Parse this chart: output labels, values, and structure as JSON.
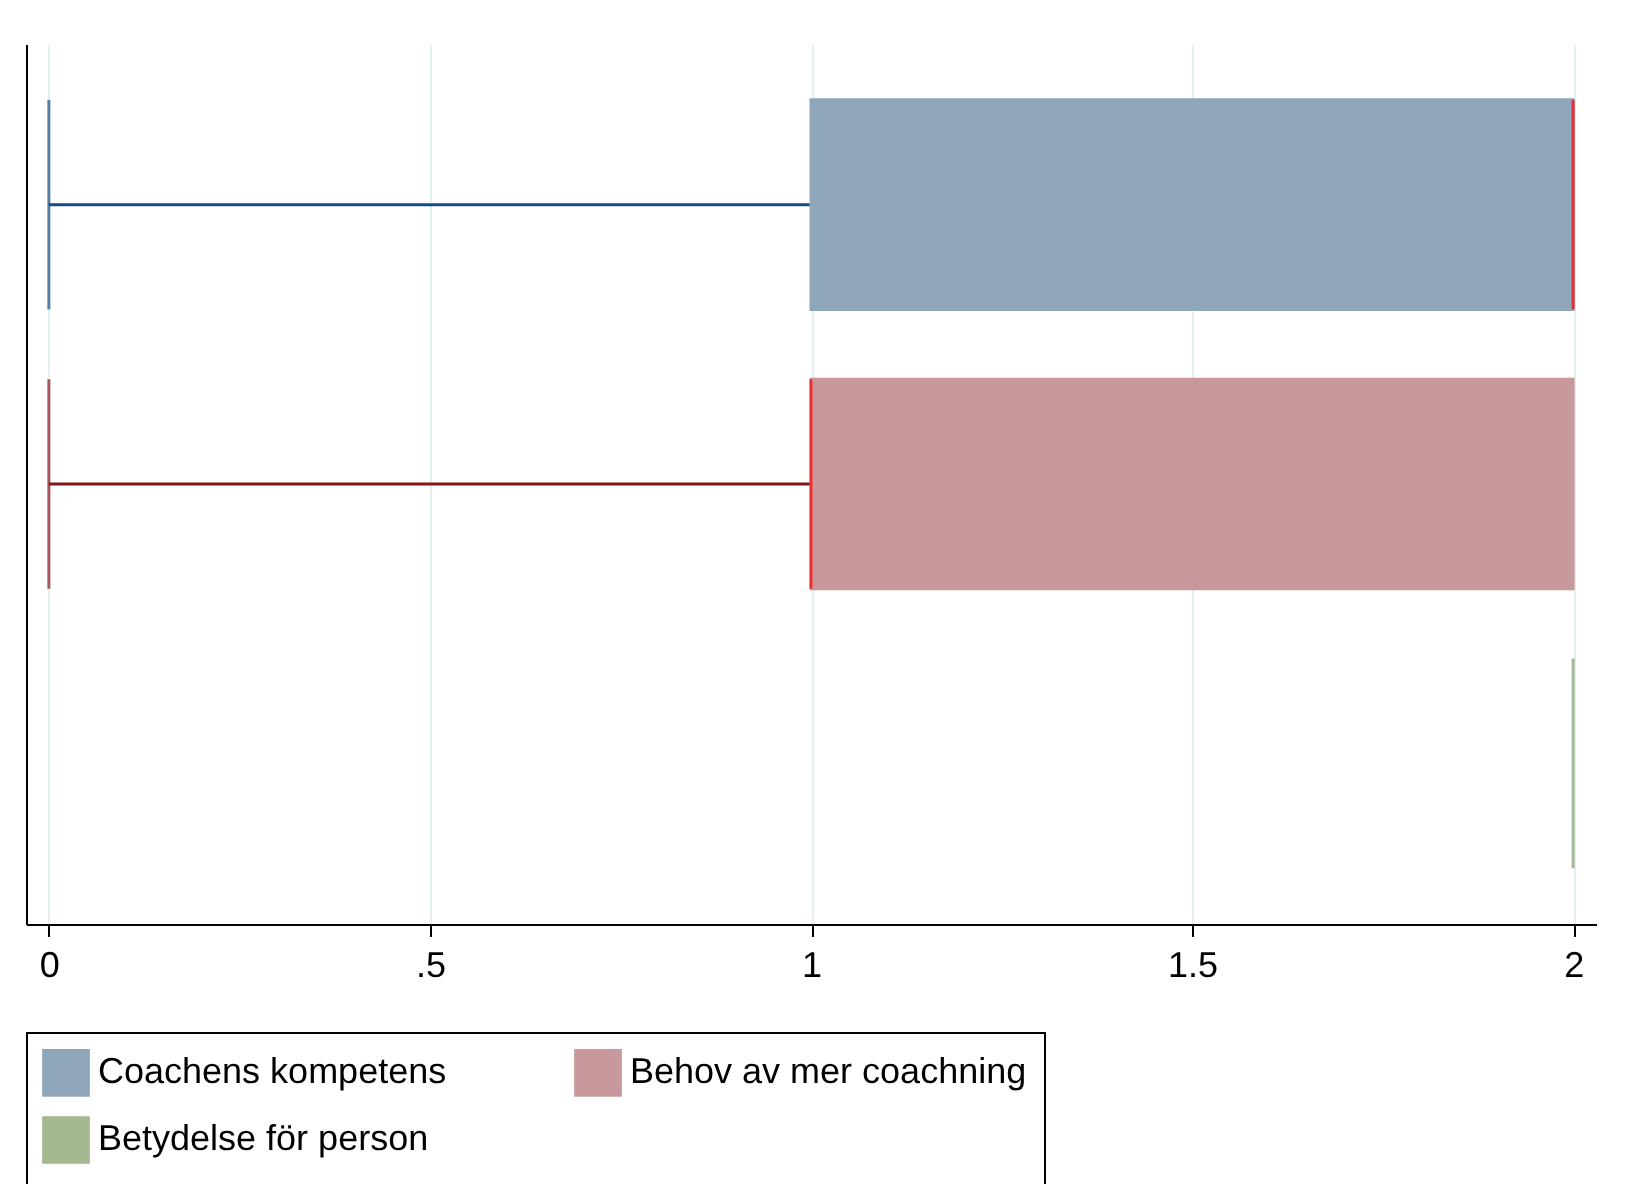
{
  "chart_data": {
    "type": "box",
    "orientation": "horizontal",
    "categories": [
      null,
      null,
      null
    ],
    "series": [
      {
        "name": "Coachens kompetens",
        "color": "#8fa5ba",
        "boxes": [
          {
            "low": 0,
            "q1": 1,
            "median": 2,
            "q3": 2,
            "high": 2
          },
          null,
          null
        ]
      },
      {
        "name": "Behov av mer coachning",
        "color": "#c8999c",
        "boxes": [
          null,
          {
            "low": 0,
            "q1": 1,
            "median": 1,
            "q3": 2,
            "high": 2
          },
          null
        ]
      },
      {
        "name": "Betydelse för person",
        "color": "#a4b992",
        "boxes": [
          null,
          null,
          {
            "low": 2,
            "q1": 2,
            "median": 2,
            "q3": 2,
            "high": 2
          }
        ]
      }
    ],
    "xlim": [
      -0.03,
      2.03
    ],
    "xticks": [
      0,
      {
        "value": 0.5,
        "label": ".5"
      },
      1,
      1.5,
      2
    ],
    "grid": "x",
    "legend": "bottom",
    "tick_labels": "x"
  }
}
